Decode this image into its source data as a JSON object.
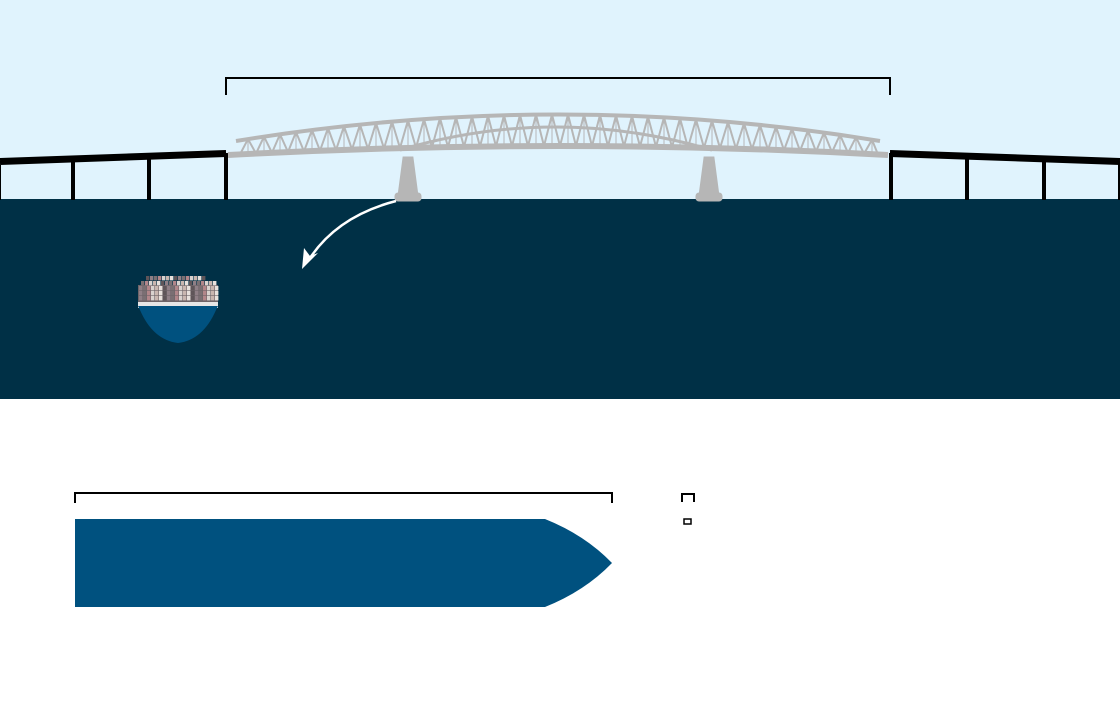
{
  "colors": {
    "sky": "#e0f3fd",
    "water": "#003046",
    "bridge": "#b6b6b6",
    "approach": "#000000",
    "hull": "#00517f",
    "page": "#ffffff",
    "bracket": "#000000",
    "arrow": "#ffffff"
  },
  "icons": {
    "ship": "container-ship-front-icon",
    "arrow": "curved-arrow-icon"
  }
}
